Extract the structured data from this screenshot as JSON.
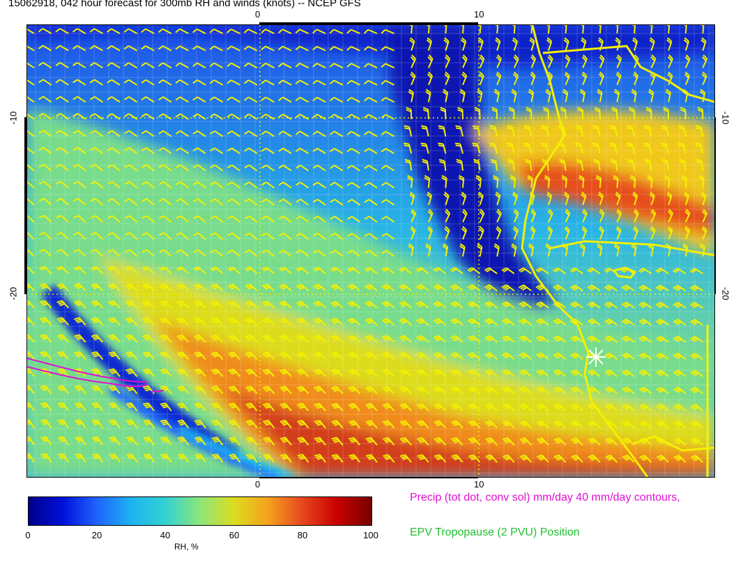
{
  "title": "15062918, 042 hour forecast for 300mb RH and winds (knots) -- NCEP GFS",
  "map": {
    "x_axis_top": [
      "0",
      "10"
    ],
    "x_axis_bottom": [
      "0",
      "10"
    ],
    "y_axis_left": [
      "-10",
      "-20"
    ],
    "y_axis_right": [
      "-10",
      "-20"
    ],
    "overlay_colors": {
      "barbs": "#f4f000",
      "coastline": "#f4f000",
      "precip_contour": "#e010d0",
      "marker": "#ffffff"
    }
  },
  "colorbar": {
    "label": "RH, %",
    "ticks": [
      "0",
      "20",
      "40",
      "60",
      "80",
      "100"
    ],
    "min": 0,
    "max": 100,
    "colors": [
      "#00008b",
      "#0010d8",
      "#1e64ff",
      "#1eb4f0",
      "#32d2d2",
      "#8ce67a",
      "#dcdc1e",
      "#f5a01e",
      "#e6461e",
      "#c80000",
      "#780000"
    ]
  },
  "legend": {
    "precip": "Precip (tot dot, conv sol) mm/day 40 mm/day contours,",
    "epv": "EPV Tropopause (2 PVU) Position"
  }
}
